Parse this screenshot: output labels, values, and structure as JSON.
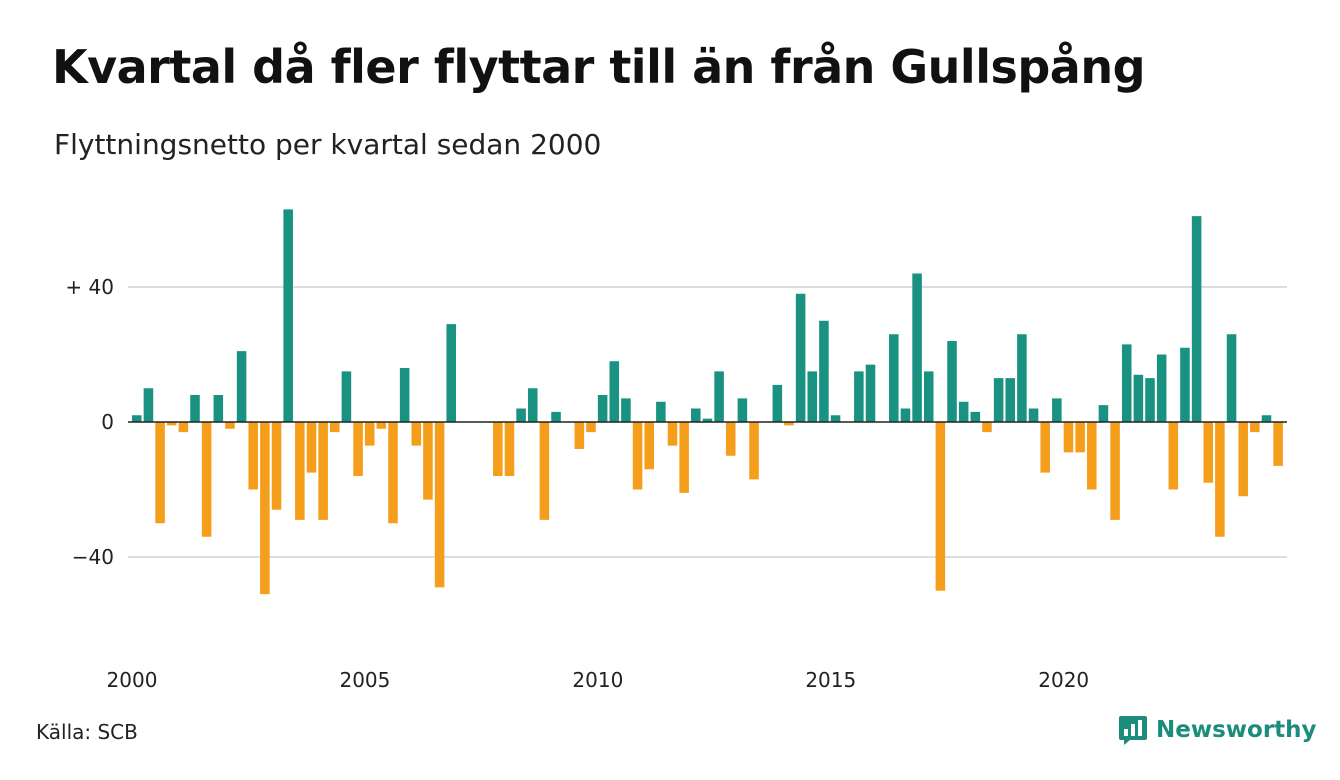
{
  "chart_data": {
    "type": "bar",
    "title": "Kvartal då fler flyttar till än från Gullspång",
    "subtitle": "Flyttningsnetto per kvartal sedan 2000",
    "x_start": "2000 Q1",
    "quarters_per_year": 4,
    "values": [
      2,
      10,
      -30,
      -1,
      -3,
      8,
      -34,
      8,
      -2,
      21,
      -20,
      -51,
      -26,
      63,
      -29,
      -15,
      -29,
      -3,
      15,
      -16,
      -7,
      -2,
      -30,
      16,
      -7,
      -23,
      -49,
      29,
      0,
      0,
      0,
      -16,
      -16,
      4,
      10,
      -29,
      3,
      0,
      -8,
      -3,
      8,
      18,
      7,
      -20,
      -14,
      6,
      -7,
      -21,
      4,
      1,
      15,
      -10,
      7,
      -17,
      0,
      11,
      -1,
      38,
      15,
      30,
      2,
      0,
      15,
      17,
      0,
      26,
      4,
      44,
      15,
      -50,
      24,
      6,
      3,
      -3,
      13,
      13,
      26,
      4,
      -15,
      7,
      -9,
      -9,
      -20,
      5,
      -29,
      23,
      14,
      13,
      20,
      -20,
      22,
      61,
      -18,
      -34,
      26,
      -22,
      -3,
      2,
      -13
    ],
    "positive_color": "#1a9281",
    "negative_color": "#f59e1b",
    "y_ticks": [
      {
        "value": 40,
        "label": "+ 40"
      },
      {
        "value": 0,
        "label": "0"
      },
      {
        "value": -40,
        "label": "−40"
      }
    ],
    "ylim": [
      -65,
      65
    ],
    "x_ticks": [
      {
        "value": 2000,
        "label": "2000"
      },
      {
        "value": 2005,
        "label": "2005"
      },
      {
        "value": 2010,
        "label": "2010"
      },
      {
        "value": 2015,
        "label": "2015"
      },
      {
        "value": 2020,
        "label": "2020"
      }
    ],
    "xlim": [
      2000,
      2024.75
    ],
    "grid": true
  },
  "source": "Källa: SCB",
  "brand": {
    "name": "Newsworthy",
    "icon": "newsworthy-logo-icon",
    "color": "#1c8c7c"
  }
}
